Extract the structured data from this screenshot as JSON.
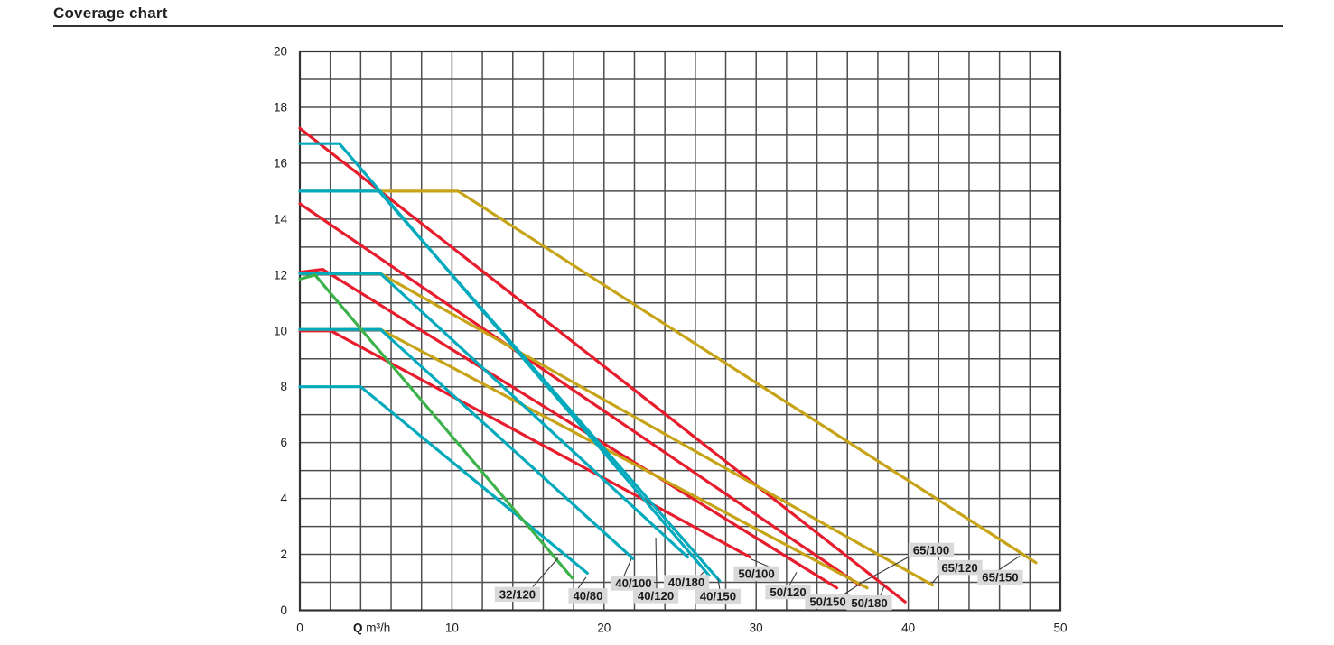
{
  "page": {
    "title": "Coverage chart"
  },
  "chart_data": {
    "type": "line",
    "title": "Coverage chart",
    "xlabel_bold": "Q",
    "xlabel_unit": " m³/h",
    "xlim": [
      0,
      50
    ],
    "ylim": [
      0,
      20
    ],
    "x_ticks": [
      0,
      10,
      20,
      30,
      40,
      50
    ],
    "y_ticks": [
      0,
      2,
      4,
      6,
      8,
      10,
      12,
      14,
      16,
      18,
      20
    ],
    "x_grid_step": 2,
    "y_grid_step": 1,
    "grid_on": true,
    "colors": {
      "red": "#e71c2c",
      "teal": "#00a9bb",
      "yellow": "#c7a417",
      "green": "#3db14a",
      "grid": "#4e4e4e",
      "border": "#333333",
      "leader": "#3a3a3a",
      "label_bg": "#d9d9d9",
      "text": "#1a1a1a"
    },
    "series": [
      {
        "name": "50/100",
        "color": "red",
        "points": [
          [
            0,
            10.0
          ],
          [
            2.05,
            10.0
          ],
          [
            29.6,
            1.9
          ]
        ]
      },
      {
        "name": "50/120",
        "color": "red",
        "points": [
          [
            0,
            12.1
          ],
          [
            1.5,
            12.2
          ],
          [
            35.3,
            0.8
          ]
        ]
      },
      {
        "name": "50/150",
        "color": "red",
        "points": [
          [
            0,
            14.55
          ],
          [
            36.8,
            0.9
          ]
        ]
      },
      {
        "name": "50/180",
        "color": "red",
        "points": [
          [
            0,
            17.25
          ],
          [
            39.8,
            0.3
          ]
        ]
      },
      {
        "name": "65/100",
        "color": "yellow",
        "points": [
          [
            0,
            10.05
          ],
          [
            5.3,
            10.05
          ],
          [
            37.3,
            0.8
          ]
        ]
      },
      {
        "name": "65/120",
        "color": "yellow",
        "points": [
          [
            0,
            12.05
          ],
          [
            5.3,
            12.05
          ],
          [
            41.6,
            0.9
          ]
        ]
      },
      {
        "name": "65/150",
        "color": "yellow",
        "points": [
          [
            0,
            15.0
          ],
          [
            10.4,
            15.0
          ],
          [
            48.4,
            1.7
          ]
        ]
      },
      {
        "name": "40/80",
        "color": "teal",
        "points": [
          [
            0,
            8.0
          ],
          [
            4.0,
            8.0
          ],
          [
            18.9,
            1.33
          ]
        ]
      },
      {
        "name": "40/100",
        "color": "teal",
        "points": [
          [
            0,
            10.05
          ],
          [
            5.3,
            10.05
          ],
          [
            21.9,
            1.85
          ]
        ]
      },
      {
        "name": "40/120",
        "color": "teal",
        "points": [
          [
            0,
            12.05
          ],
          [
            5.3,
            12.05
          ],
          [
            25.5,
            1.9
          ]
        ]
      },
      {
        "name": "40/150",
        "color": "teal",
        "points": [
          [
            0,
            15.0
          ],
          [
            5.2,
            15.0
          ],
          [
            27.6,
            1.05
          ]
        ]
      },
      {
        "name": "40/180",
        "color": "teal",
        "points": [
          [
            0,
            16.7
          ],
          [
            2.6,
            16.7
          ],
          [
            26.9,
            1.25
          ]
        ]
      },
      {
        "name": "32/120",
        "color": "green",
        "points": [
          [
            0,
            11.85
          ],
          [
            1.0,
            12.0
          ],
          [
            17.9,
            1.16
          ]
        ]
      }
    ],
    "curve_labels": [
      {
        "text": "32/120",
        "cx": 14.31,
        "cy": 0.57,
        "leader": [
          [
            15.32,
            0.84
          ],
          [
            16.98,
            1.87
          ]
        ]
      },
      {
        "text": "40/80",
        "cx": 18.94,
        "cy": 0.52,
        "leader": [
          [
            18.29,
            0.78
          ],
          [
            18.82,
            1.18
          ]
        ]
      },
      {
        "text": "40/100",
        "cx": 21.94,
        "cy": 0.97,
        "leader": [
          [
            21.26,
            1.16
          ],
          [
            21.79,
            1.84
          ]
        ]
      },
      {
        "text": "40/120",
        "cx": 23.4,
        "cy": 0.52,
        "leader": [
          [
            23.46,
            0.76
          ],
          [
            23.4,
            2.6
          ]
        ]
      },
      {
        "text": "40/180",
        "cx": 25.42,
        "cy": 1.0,
        "leader": [
          [
            26.31,
            1.24
          ],
          [
            26.6,
            1.39
          ]
        ],
        "leader2": [
          [
            23.28,
            1.0
          ],
          [
            24.05,
            1.0
          ]
        ]
      },
      {
        "text": "40/150",
        "cx": 27.49,
        "cy": 0.5,
        "leader": [
          [
            27.61,
            0.74
          ],
          [
            27.49,
            1.13
          ]
        ]
      },
      {
        "text": "50/100",
        "cx": 30.02,
        "cy": 1.31,
        "leader": [
          [
            30.88,
            1.55
          ],
          [
            29.63,
            1.84
          ]
        ]
      },
      {
        "text": "50/120",
        "cx": 32.1,
        "cy": 0.66,
        "leader": [
          [
            32.19,
            0.9
          ],
          [
            32.66,
            1.36
          ]
        ]
      },
      {
        "text": "50/150",
        "cx": 34.71,
        "cy": 0.32,
        "leader": [
          [
            35.63,
            0.52
          ],
          [
            36.7,
            0.9
          ]
        ]
      },
      {
        "text": "50/180",
        "cx": 37.44,
        "cy": 0.27,
        "leader": [
          [
            38.12,
            0.45
          ],
          [
            38.42,
            0.87
          ]
        ]
      },
      {
        "text": "65/100",
        "cx": 41.51,
        "cy": 2.15,
        "leader": [
          [
            40.14,
            1.94
          ],
          [
            36.76,
            0.94
          ]
        ]
      },
      {
        "text": "65/120",
        "cx": 43.38,
        "cy": 1.53,
        "leader": [
          [
            42.1,
            1.32
          ],
          [
            41.57,
            0.97
          ]
        ]
      },
      {
        "text": "65/150",
        "cx": 46.05,
        "cy": 1.18,
        "leader": [
          [
            45.9,
            1.42
          ],
          [
            47.33,
            1.94
          ]
        ]
      }
    ]
  }
}
